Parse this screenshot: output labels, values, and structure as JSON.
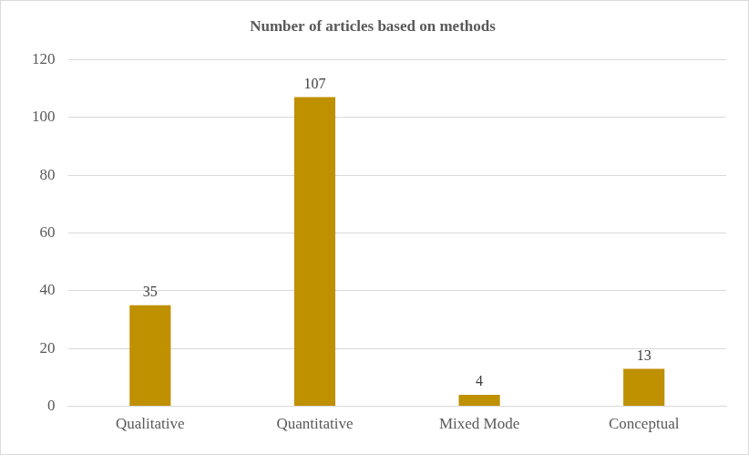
{
  "chart_data": {
    "type": "bar",
    "title": "Number of articles based on methods",
    "categories": [
      "Qualitative",
      "Quantitative",
      "Mixed Mode",
      "Conceptual"
    ],
    "values": [
      35,
      107,
      4,
      13
    ],
    "color": "#bf9000",
    "ylim": [
      0,
      120
    ],
    "yticks": [
      0,
      20,
      40,
      60,
      80,
      100,
      120
    ],
    "grid": true,
    "data_labels": true
  }
}
